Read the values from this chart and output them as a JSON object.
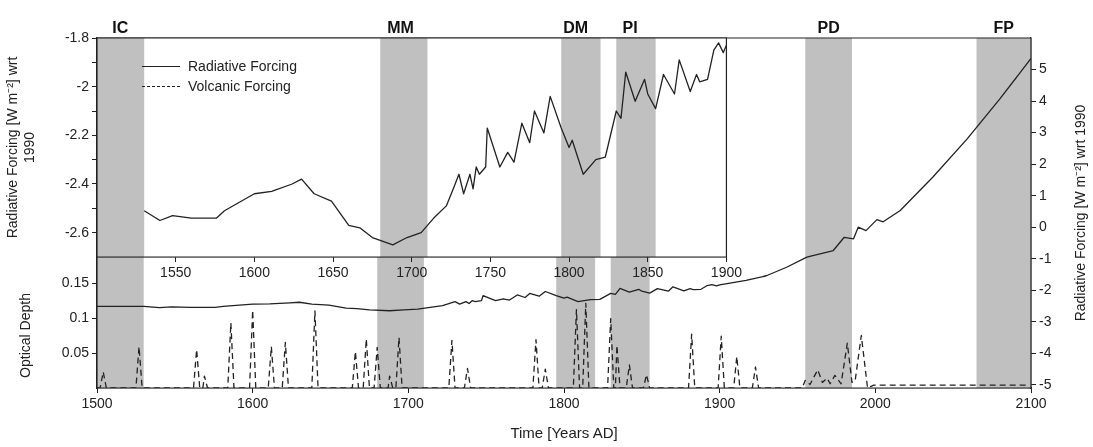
{
  "chart_data": [
    {
      "type": "line",
      "xlabel": "Time [Years AD]",
      "ylabel": "Optical Depth",
      "y2label": "Radiative Forcing [W m⁻²] wrt 1990",
      "xlim": [
        1500,
        2100
      ],
      "xticks": [
        1500,
        1600,
        1700,
        1800,
        1900,
        2000,
        2100
      ],
      "ylim": [
        0,
        0.5
      ],
      "yticks": [
        0.05,
        0.1,
        0.15
      ],
      "y2lim": [
        -5.1,
        6
      ],
      "y2ticks": [
        -5,
        -4,
        -3,
        -2,
        -1,
        0,
        1,
        2,
        3,
        4,
        5
      ],
      "legend": "top left",
      "grid": false,
      "series": [
        {
          "name": "Radiative Forcing",
          "color": "#222222",
          "axis": "y2",
          "line_style": "solid",
          "x": [
            1500,
            1515,
            1530,
            1540,
            1548,
            1560,
            1576,
            1581,
            1600,
            1611,
            1624,
            1630,
            1638,
            1649,
            1660,
            1667,
            1675,
            1688,
            1697,
            1706,
            1714,
            1722,
            1727,
            1730,
            1733,
            1737,
            1739,
            1741,
            1743,
            1747,
            1748,
            1750,
            1756,
            1761,
            1765,
            1770,
            1775,
            1778,
            1784,
            1788,
            1795,
            1800,
            1802,
            1809,
            1817,
            1823,
            1830,
            1833,
            1836,
            1842,
            1848,
            1850,
            1855,
            1860,
            1867,
            1870,
            1877,
            1881,
            1883,
            1888,
            1892,
            1895,
            1898,
            1900,
            1917,
            1930,
            1943,
            1956,
            1973,
            1980,
            1986,
            1989,
            1994,
            2001,
            2005,
            2016,
            2037,
            2059,
            2080,
            2100
          ],
          "values": [
            -2.51,
            -2.51,
            -2.51,
            -2.55,
            -2.53,
            -2.54,
            -2.54,
            -2.51,
            -2.44,
            -2.43,
            -2.4,
            -2.38,
            -2.44,
            -2.47,
            -2.57,
            -2.58,
            -2.62,
            -2.65,
            -2.62,
            -2.6,
            -2.54,
            -2.49,
            -2.41,
            -2.36,
            -2.44,
            -2.36,
            -2.42,
            -2.33,
            -2.36,
            -2.33,
            -2.17,
            -2.21,
            -2.33,
            -2.27,
            -2.31,
            -2.15,
            -2.23,
            -2.1,
            -2.19,
            -2.04,
            -2.17,
            -2.25,
            -2.22,
            -2.36,
            -2.3,
            -2.29,
            -2.1,
            -2.13,
            -1.94,
            -2.06,
            -1.97,
            -2.03,
            -2.09,
            -1.95,
            -2.03,
            -1.89,
            -2.02,
            -1.95,
            -1.98,
            -1.97,
            -1.85,
            -1.82,
            -1.86,
            -1.83,
            -1.69,
            -1.54,
            -1.27,
            -0.95,
            -0.74,
            -0.32,
            -0.37,
            0,
            -0.11,
            0.24,
            0.17,
            0.53,
            1.59,
            2.8,
            4.07,
            5.35
          ]
        },
        {
          "name": "Volcanic Forcing",
          "color": "#222222",
          "line_style": "dashed",
          "x": [
            1500,
            1502,
            1504,
            1506,
            1525,
            1527,
            1529,
            1562,
            1564,
            1566,
            1568,
            1569,
            1571,
            1584,
            1586,
            1588,
            1598,
            1600,
            1602,
            1610,
            1612,
            1614,
            1619,
            1621,
            1623,
            1638,
            1640,
            1642,
            1664,
            1666,
            1668,
            1671,
            1673,
            1675,
            1678,
            1680,
            1682,
            1687,
            1688,
            1690,
            1692,
            1694,
            1696,
            1726,
            1728,
            1730,
            1736,
            1738,
            1740,
            1780,
            1782,
            1784,
            1786,
            1788,
            1790,
            1806,
            1808,
            1810,
            1812,
            1814,
            1816,
            1828,
            1830,
            1832,
            1833,
            1834,
            1836,
            1840,
            1842,
            1844,
            1851,
            1853,
            1855,
            1880,
            1882,
            1884,
            1899,
            1901,
            1903,
            1909,
            1911,
            1913,
            1921,
            1923,
            1925,
            1953,
            1955,
            1958,
            1963,
            1966,
            1969,
            1971,
            1974,
            1978,
            1982,
            1985,
            1987,
            1991,
            1995,
            1999,
            2097
          ],
          "values": [
            0,
            0,
            0.023,
            0,
            0,
            0.059,
            0,
            0,
            0.055,
            0,
            0,
            0.017,
            0,
            0,
            0.093,
            0,
            0,
            0.111,
            0,
            0,
            0.059,
            0,
            0,
            0.065,
            0,
            0,
            0.11,
            0,
            0,
            0.052,
            0,
            0,
            0.07,
            0,
            0,
            0.058,
            0,
            0,
            0.017,
            0,
            0,
            0.072,
            0,
            0,
            0.068,
            0,
            0,
            0.028,
            0,
            0,
            0.069,
            0,
            0,
            0.027,
            0,
            0,
            0.112,
            0,
            0,
            0.121,
            0,
            0,
            0.099,
            0,
            0,
            0.061,
            0,
            0,
            0.033,
            0,
            0,
            0.019,
            0,
            0,
            0.077,
            0,
            0,
            0.074,
            0,
            0,
            0.045,
            0,
            0,
            0.03,
            0,
            0,
            0.011,
            0.005,
            0.026,
            0.008,
            0.014,
            0.006,
            0.018,
            0.006,
            0.064,
            0.008,
            0.01,
            0.075,
            0,
            0.004,
            0.004
          ]
        }
      ],
      "bands": [
        {
          "axis": "x",
          "from": 1500,
          "to": 1530,
          "label": "IC",
          "color": "#c0c0c0"
        },
        {
          "axis": "x",
          "from": 1680,
          "to": 1710,
          "label": "MM",
          "color": "#c0c0c0"
        },
        {
          "axis": "x",
          "from": 1795,
          "to": 1820,
          "label": "DM",
          "color": "#c0c0c0"
        },
        {
          "axis": "x",
          "from": 1830,
          "to": 1855,
          "label": "PI",
          "color": "#c0c0c0"
        },
        {
          "axis": "x",
          "from": 1955,
          "to": 1985,
          "label": "PD",
          "color": "#c0c0c0"
        },
        {
          "axis": "x",
          "from": 2065,
          "to": 2100,
          "label": "FP",
          "color": "#c0c0c0"
        }
      ]
    },
    {
      "type": "line",
      "ylabel": "Radiative Forcing [W m⁻²] wrt 1990",
      "xlim": [
        1500,
        1900
      ],
      "xticks": [
        1550,
        1600,
        1650,
        1700,
        1750,
        1800,
        1850,
        1900
      ],
      "ylim": [
        -2.7,
        -1.8
      ],
      "yticks": [
        -1.8,
        {
          "value": -1.9,
          "label": null
        },
        -2,
        {
          "value": -2.1,
          "label": null
        },
        -2.2,
        {
          "value": -2.3,
          "label": null
        },
        -2.4,
        {
          "value": -2.5,
          "label": null
        },
        -2.6
      ],
      "grid": false,
      "series": [
        {
          "color": "#222222",
          "line_style": "solid",
          "x": [
            1530,
            1540,
            1548,
            1560,
            1576,
            1581,
            1600,
            1611,
            1624,
            1630,
            1638,
            1649,
            1660,
            1667,
            1675,
            1688,
            1697,
            1706,
            1714,
            1722,
            1727,
            1730,
            1733,
            1737,
            1739,
            1741,
            1743,
            1747,
            1748,
            1750,
            1756,
            1761,
            1765,
            1770,
            1775,
            1778,
            1784,
            1788,
            1795,
            1800,
            1802,
            1809,
            1817,
            1823,
            1830,
            1833,
            1836,
            1842,
            1848,
            1850,
            1855,
            1860,
            1867,
            1870,
            1877,
            1881,
            1883,
            1888,
            1892,
            1895,
            1898,
            1900
          ],
          "values": [
            -2.51,
            -2.55,
            -2.53,
            -2.54,
            -2.54,
            -2.51,
            -2.44,
            -2.43,
            -2.4,
            -2.38,
            -2.44,
            -2.47,
            -2.57,
            -2.58,
            -2.62,
            -2.65,
            -2.62,
            -2.6,
            -2.54,
            -2.49,
            -2.41,
            -2.36,
            -2.44,
            -2.36,
            -2.42,
            -2.33,
            -2.36,
            -2.33,
            -2.17,
            -2.21,
            -2.33,
            -2.27,
            -2.31,
            -2.15,
            -2.23,
            -2.1,
            -2.19,
            -2.04,
            -2.17,
            -2.25,
            -2.22,
            -2.36,
            -2.3,
            -2.29,
            -2.1,
            -2.13,
            -1.94,
            -2.06,
            -1.97,
            -2.03,
            -2.09,
            -1.95,
            -2.03,
            -1.89,
            -2.02,
            -1.95,
            -1.98,
            -1.97,
            -1.85,
            -1.82,
            -1.86,
            -1.83
          ]
        }
      ],
      "bands": [
        {
          "axis": "x",
          "from": 1500,
          "to": 1530,
          "color": "#c0c0c0"
        },
        {
          "axis": "x",
          "from": 1680,
          "to": 1710,
          "color": "#c0c0c0"
        },
        {
          "axis": "x",
          "from": 1795,
          "to": 1820,
          "color": "#c0c0c0"
        },
        {
          "axis": "x",
          "from": 1830,
          "to": 1855,
          "color": "#c0c0c0"
        }
      ]
    }
  ]
}
